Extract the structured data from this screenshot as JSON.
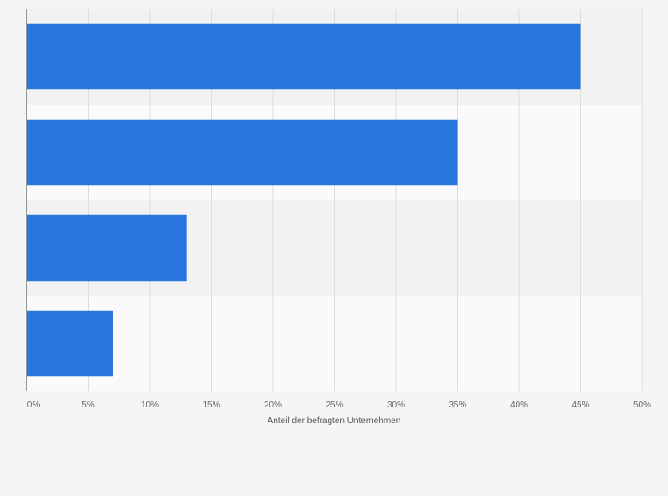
{
  "chart_data": {
    "type": "bar",
    "orientation": "horizontal",
    "categories": [
      "",
      "",
      "",
      ""
    ],
    "values": [
      45,
      35,
      13,
      7
    ],
    "xlabel": "Anteil der befragten Unternehmen",
    "ylabel": "",
    "xlim": [
      0,
      50
    ],
    "x_ticks": [
      "0%",
      "5%",
      "10%",
      "15%",
      "20%",
      "25%",
      "30%",
      "35%",
      "40%",
      "45%",
      "50%"
    ],
    "bar_color": "#2876dd",
    "band_colors": [
      "#f2f2f2",
      "#fafafa"
    ],
    "grid": true,
    "legend": "none"
  }
}
